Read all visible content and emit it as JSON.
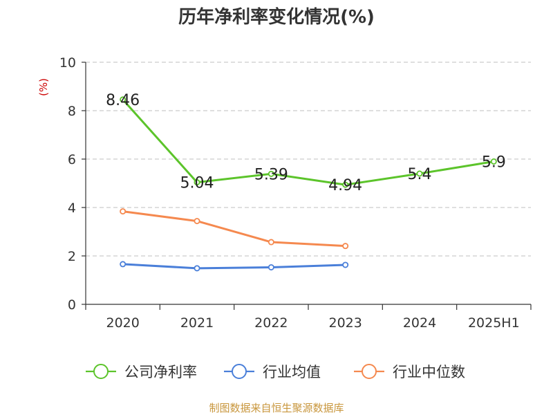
{
  "chart_data": {
    "type": "line",
    "title": "历年净利率变化情况(%)",
    "y_unit": "(%)",
    "categories": [
      "2020",
      "2021",
      "2022",
      "2023",
      "2024",
      "2025H1"
    ],
    "ylim": [
      0,
      10
    ],
    "yticks": [
      "0",
      "2",
      "4",
      "6",
      "8",
      "10"
    ],
    "grid": true,
    "legend_position": "bottom",
    "series": [
      {
        "name": "公司净利率",
        "color": "#5cc42b",
        "values": [
          8.46,
          5.04,
          5.39,
          4.94,
          5.4,
          5.9
        ],
        "labels": [
          "8.46",
          "5.04",
          "5.39",
          "4.94",
          "5.4",
          "5.9"
        ]
      },
      {
        "name": "行业均值",
        "color": "#4a7fd9",
        "values": [
          1.66,
          1.49,
          1.53,
          1.63,
          null,
          null
        ]
      },
      {
        "name": "行业中位数",
        "color": "#f5894f",
        "values": [
          3.84,
          3.44,
          2.57,
          2.41,
          null,
          null
        ]
      }
    ]
  },
  "source": "制图数据来自恒生聚源数据库",
  "colors": {
    "unit": "#cc0000",
    "source": "#c8963c",
    "grid": "#cccccc",
    "axis": "#333333"
  }
}
